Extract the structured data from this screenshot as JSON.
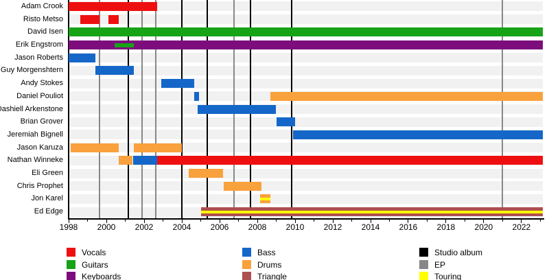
{
  "chart_data": {
    "type": "timeline",
    "x_axis": {
      "min": 1998,
      "max": 2023.13,
      "major_years": [
        1998,
        2000,
        2002,
        2004,
        2006,
        2008,
        2010,
        2012,
        2014,
        2016,
        2018,
        2020,
        2022
      ],
      "minor_years": [
        1999,
        2001,
        2003,
        2005,
        2007,
        2009,
        2011,
        2013,
        2015,
        2017,
        2019,
        2021,
        2023
      ]
    },
    "roles": {
      "Vocals": "#EE1010",
      "Guitars": "#16A316",
      "Keyboards": "#7D0C7D",
      "Bass": "#1467C8",
      "Drums": "#F9A13C",
      "Triangle": "#AD5050",
      "Studio album": "#000000",
      "EP": "#878787",
      "Touring": "#FFFF00"
    },
    "members": [
      {
        "name": "Adam Crook",
        "segments": [
          {
            "role": "Vocals",
            "start": 1998.0,
            "end": 2002.7
          }
        ]
      },
      {
        "name": "Risto Metso",
        "segments": [
          {
            "role": "Vocals",
            "start": 1998.6,
            "end": 1999.65
          },
          {
            "role": "Vocals",
            "start": 2000.1,
            "end": 2000.65
          }
        ]
      },
      {
        "name": "David Isen",
        "segments": [
          {
            "role": "Guitars",
            "start": 1998.0,
            "end": 2023.13
          }
        ]
      },
      {
        "name": "Erik Engstrom",
        "segments": [
          {
            "role": "Keyboards",
            "start": 1998.0,
            "end": 2023.13
          },
          {
            "role": "Guitars",
            "start": 2000.45,
            "end": 2001.45,
            "thin": true
          }
        ]
      },
      {
        "name": "Jason Roberts",
        "segments": [
          {
            "role": "Bass",
            "start": 1998.0,
            "end": 1999.4
          }
        ]
      },
      {
        "name": "Guy Morgenshtern",
        "segments": [
          {
            "role": "Bass",
            "start": 1999.4,
            "end": 2001.45
          }
        ]
      },
      {
        "name": "Andy Stokes",
        "segments": [
          {
            "role": "Bass",
            "start": 2002.9,
            "end": 2004.65
          }
        ]
      },
      {
        "name": "Daniel Pouliot",
        "segments": [
          {
            "role": "Bass",
            "start": 2004.65,
            "end": 2004.9
          },
          {
            "role": "Drums",
            "start": 2008.7,
            "end": 2023.13
          }
        ]
      },
      {
        "name": "Dashiell Arkenstone",
        "segments": [
          {
            "role": "Bass",
            "start": 2004.85,
            "end": 2009.0
          }
        ]
      },
      {
        "name": "Brian Grover",
        "segments": [
          {
            "role": "Bass",
            "start": 2009.0,
            "end": 2010.0
          }
        ]
      },
      {
        "name": "Jeremiah Bignell",
        "segments": [
          {
            "role": "Bass",
            "start": 2009.9,
            "end": 2023.13
          }
        ]
      },
      {
        "name": "Jason Karuza",
        "segments": [
          {
            "role": "Drums",
            "start": 1998.1,
            "end": 2000.65
          },
          {
            "role": "Drums",
            "start": 2001.45,
            "end": 2004.0
          }
        ]
      },
      {
        "name": "Nathan Winneke",
        "segments": [
          {
            "role": "Drums",
            "start": 2000.65,
            "end": 2001.4
          },
          {
            "role": "Bass",
            "start": 2001.4,
            "end": 2002.7
          },
          {
            "role": "Vocals",
            "start": 2002.7,
            "end": 2023.13
          }
        ]
      },
      {
        "name": "Eli Green",
        "segments": [
          {
            "role": "Drums",
            "start": 2004.35,
            "end": 2006.2
          }
        ]
      },
      {
        "name": "Chris Prophet",
        "segments": [
          {
            "role": "Drums",
            "start": 2006.2,
            "end": 2008.2
          }
        ]
      },
      {
        "name": "Jon Karel",
        "segments": [
          {
            "role": "Drums",
            "start": 2008.15,
            "end": 2008.7,
            "touring": true
          }
        ]
      },
      {
        "name": "Ed Edge",
        "segments": [
          {
            "role": "Triangle",
            "start": 2005.0,
            "end": 2023.13,
            "touring": true
          }
        ]
      }
    ],
    "releases": {
      "studio_albums": [
        2001.15,
        2004.0,
        2005.35,
        2007.65,
        2009.8
      ],
      "eps": [
        1999.65,
        2001.9,
        2002.6,
        2006.75,
        2021.0
      ]
    },
    "legend": {
      "columns": [
        [
          {
            "label": "Vocals",
            "role": "Vocals"
          },
          {
            "label": "Guitars",
            "role": "Guitars"
          },
          {
            "label": "Keyboards",
            "role": "Keyboards"
          }
        ],
        [
          {
            "label": "Bass",
            "role": "Bass"
          },
          {
            "label": "Drums",
            "role": "Drums"
          },
          {
            "label": "Triangle",
            "role": "Triangle"
          }
        ],
        [
          {
            "label": "Studio album",
            "role": "Studio album"
          },
          {
            "label": "EP",
            "role": "EP"
          },
          {
            "label": "Touring",
            "role": "Touring"
          }
        ]
      ]
    }
  }
}
